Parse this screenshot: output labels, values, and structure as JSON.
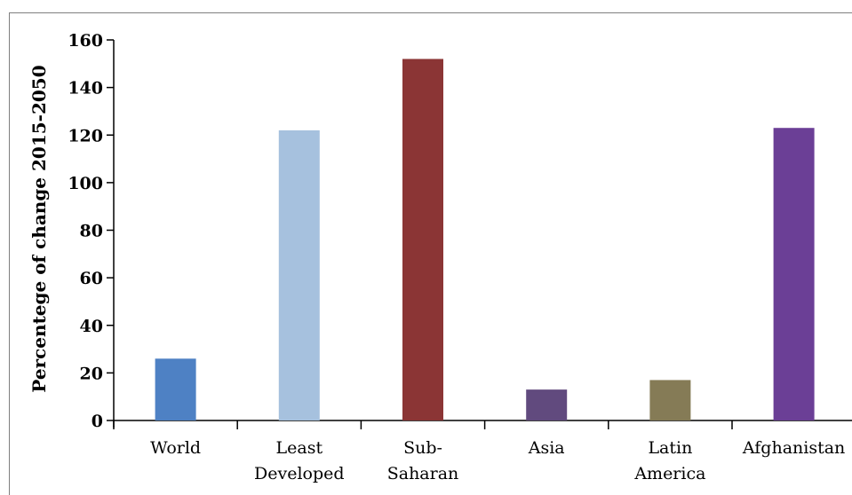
{
  "chart_data": {
    "type": "bar",
    "ylabel": "Percentege of change  2015-2050",
    "xlabel": "",
    "ylim": [
      0,
      160
    ],
    "yticks": [
      0,
      20,
      40,
      60,
      80,
      100,
      120,
      140,
      160
    ],
    "grid": false,
    "legend": "none",
    "categories": [
      {
        "lines": [
          "World"
        ]
      },
      {
        "lines": [
          "Least",
          "Developed"
        ]
      },
      {
        "lines": [
          "Sub-",
          "Saharan"
        ]
      },
      {
        "lines": [
          "Asia"
        ]
      },
      {
        "lines": [
          "Latin",
          "America"
        ]
      },
      {
        "lines": [
          "Afghanistan"
        ]
      }
    ],
    "values": [
      26,
      122,
      152,
      13,
      17,
      123
    ],
    "colors": [
      "#4e81c4",
      "#a6c1de",
      "#8b3535",
      "#614a7e",
      "#857b56",
      "#6b3f96"
    ]
  }
}
